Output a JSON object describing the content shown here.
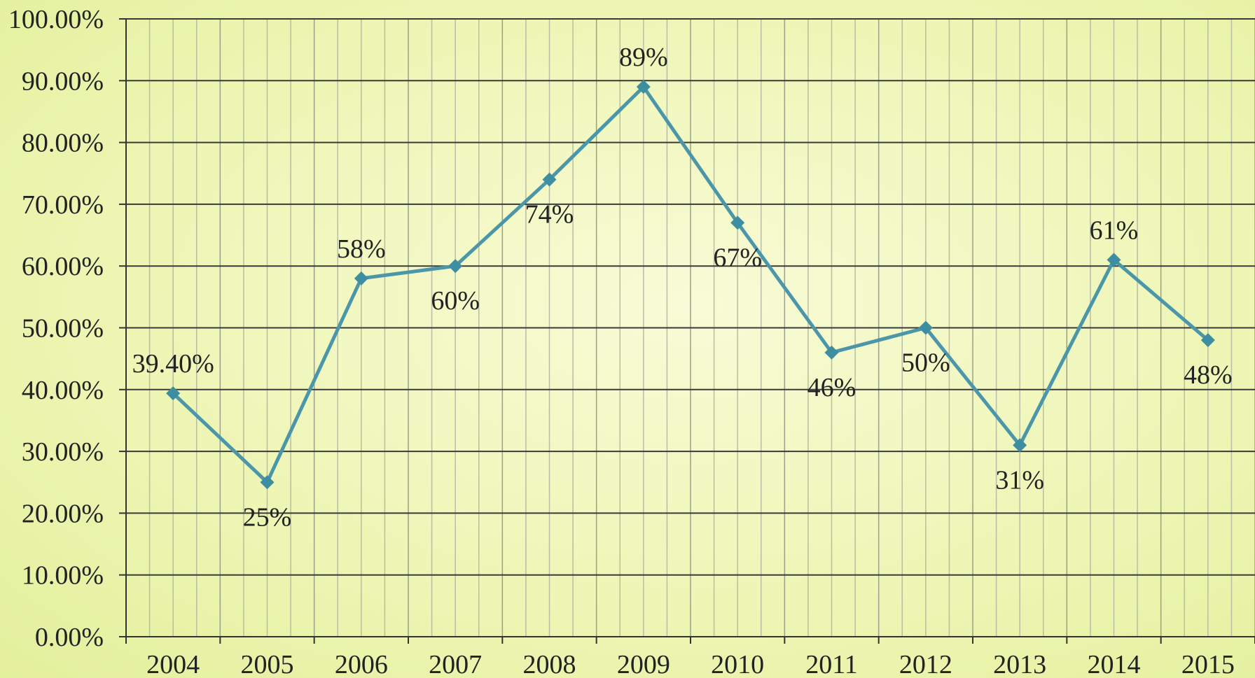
{
  "chart_data": {
    "type": "line",
    "title": "",
    "xlabel": "",
    "ylabel": "",
    "categories": [
      "2004",
      "2005",
      "2006",
      "2007",
      "2008",
      "2009",
      "2010",
      "2011",
      "2012",
      "2013",
      "2014",
      "2015"
    ],
    "series": [
      {
        "values": [
          39.4,
          25,
          58,
          60,
          74,
          89,
          67,
          46,
          50,
          31,
          61,
          48
        ],
        "labels": [
          "39.40%",
          "25%",
          "58%",
          "60%",
          "74%",
          "89%",
          "67%",
          "46%",
          "50%",
          "31%",
          "61%",
          "48%"
        ],
        "label_side": [
          "above",
          "below",
          "above",
          "below",
          "below",
          "above",
          "below",
          "below",
          "below",
          "below",
          "above",
          "below"
        ]
      }
    ],
    "ylim": [
      0,
      100
    ],
    "yticks": [
      0,
      10,
      20,
      30,
      40,
      50,
      60,
      70,
      80,
      90,
      100
    ],
    "ytick_labels": [
      "0.00%",
      "10.00%",
      "20.00%",
      "30.00%",
      "40.00%",
      "50.00%",
      "60.00%",
      "70.00%",
      "80.00%",
      "90.00%",
      "100.00%"
    ],
    "grid": "major and minor vertical, major horizontal",
    "legend": "none",
    "colors": {
      "line": "#4b96a8",
      "marker": "#3d8ea0",
      "major_grid": "#3a3a3a",
      "minor_grid": "#b9bda4"
    }
  }
}
